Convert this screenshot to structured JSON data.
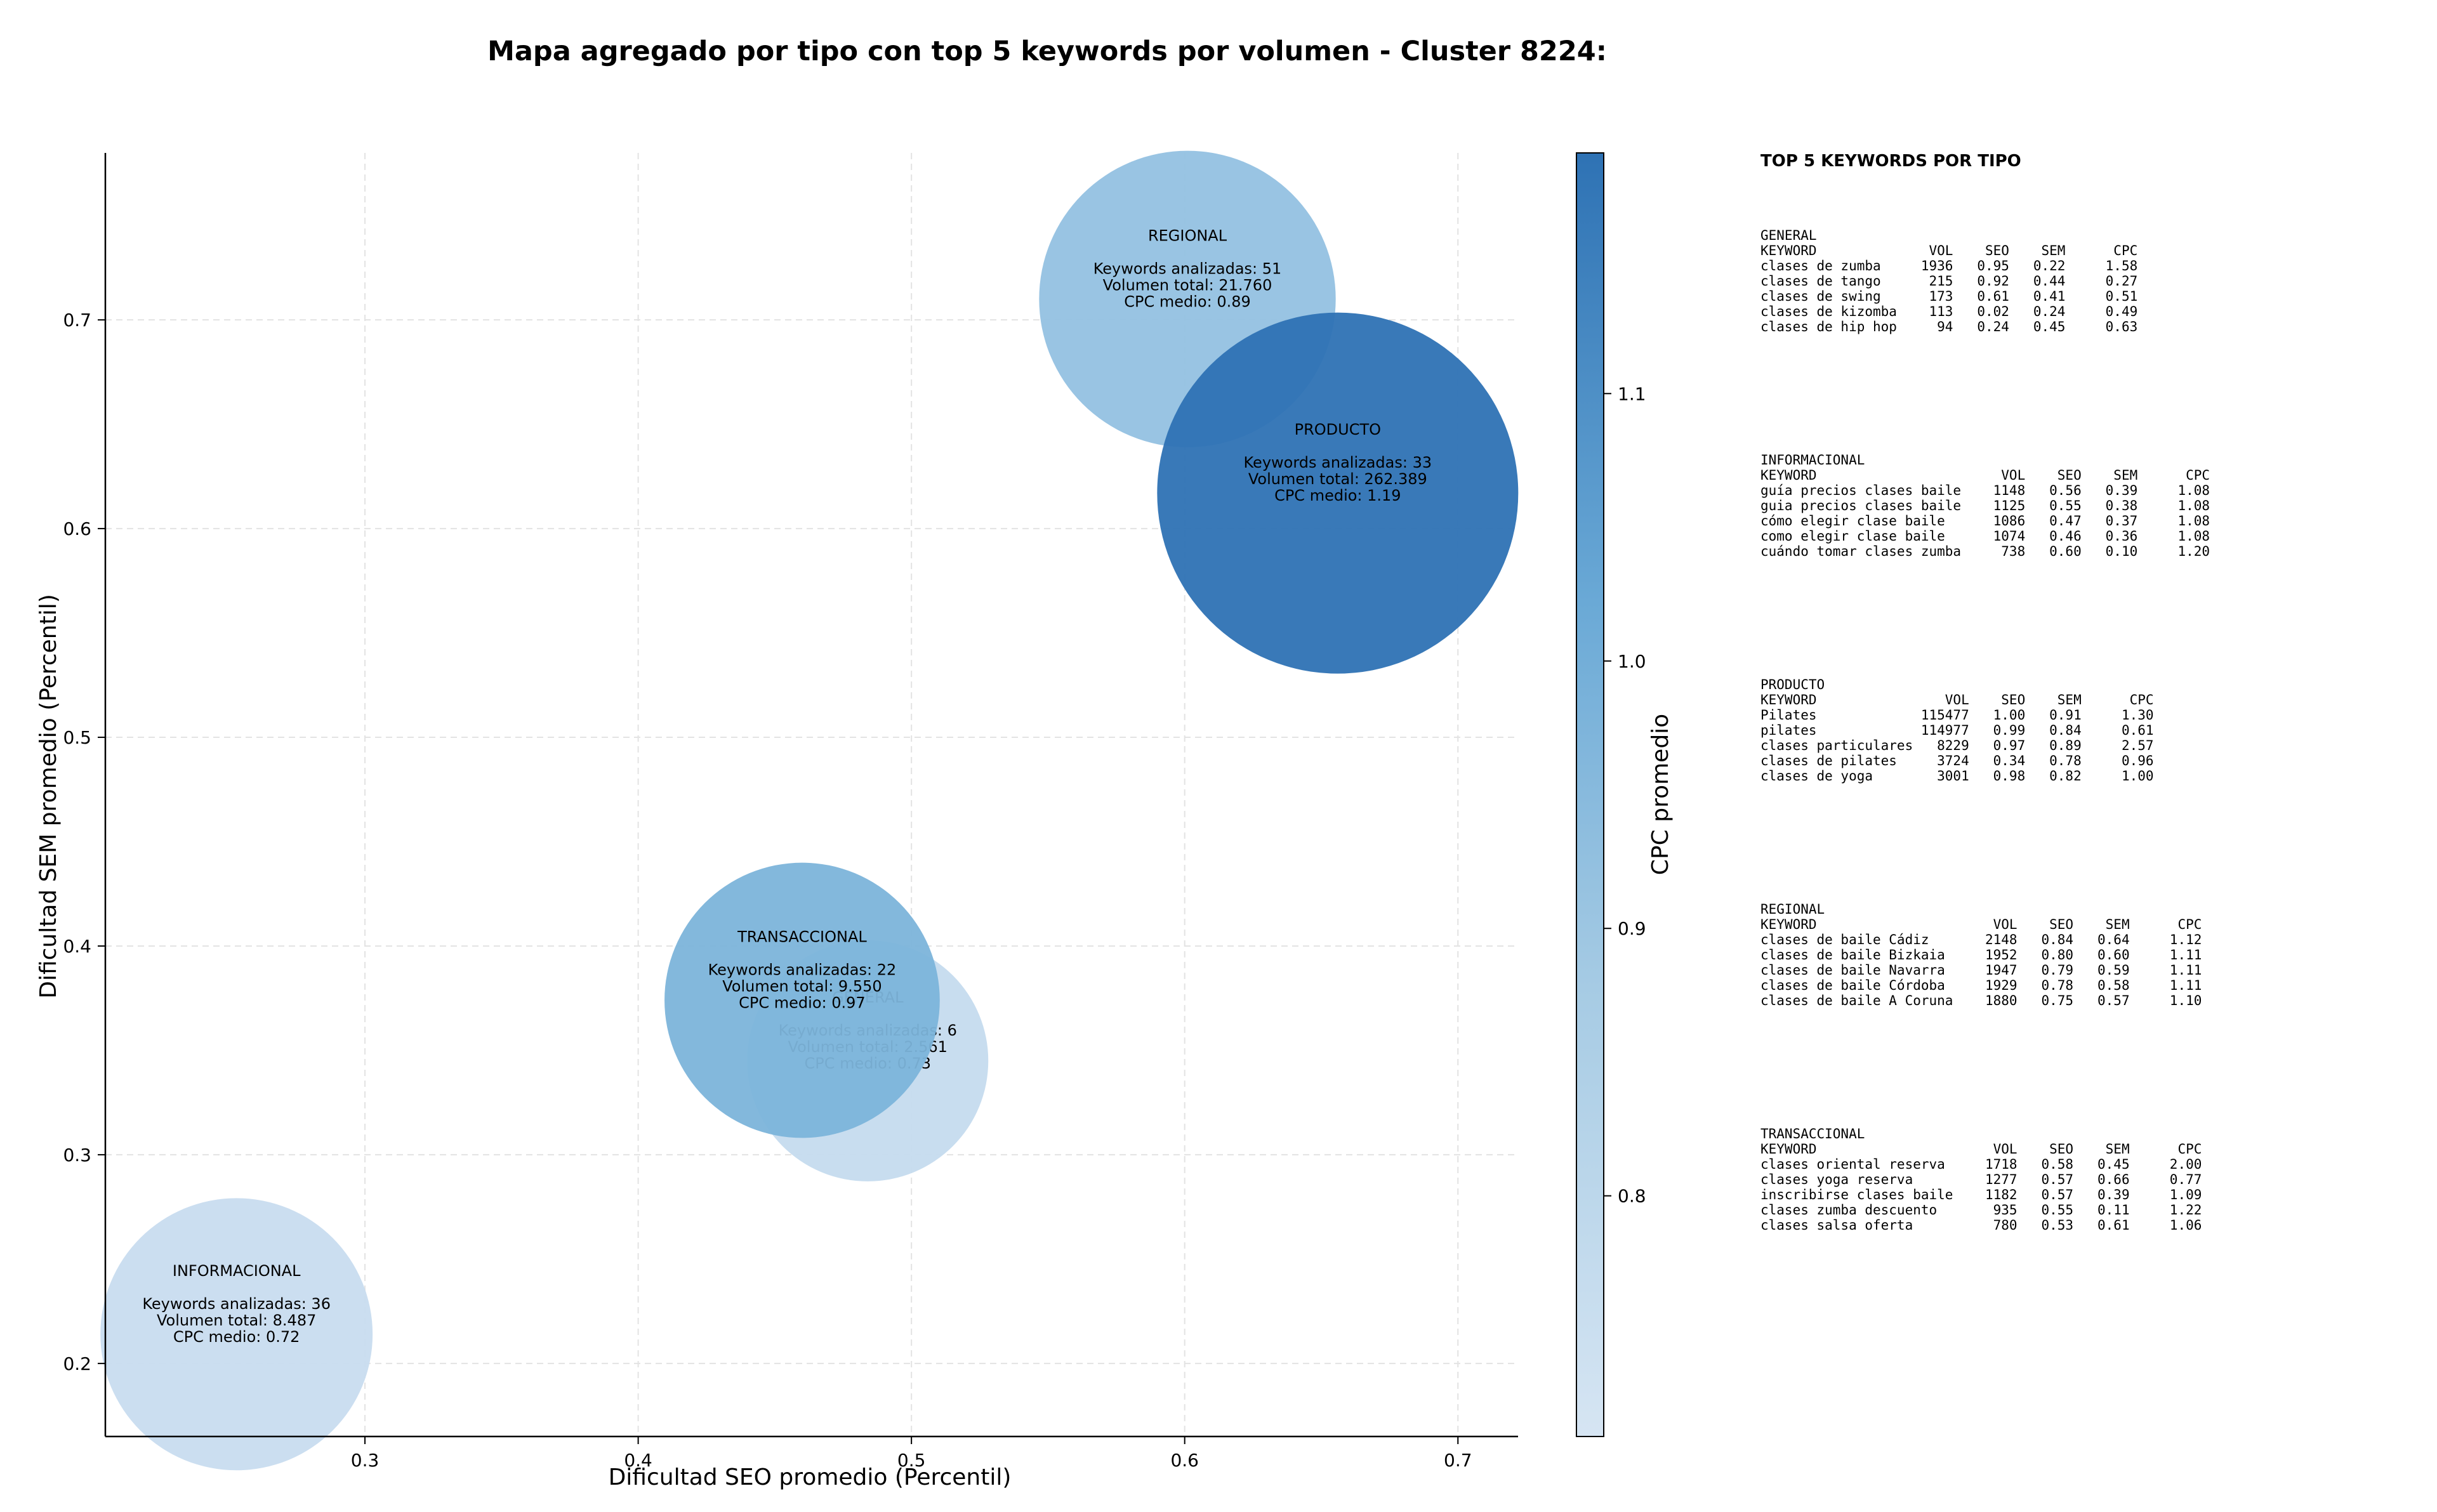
{
  "chart_data": {
    "type": "scatter",
    "title": "Mapa agregado por tipo con top 5 keywords por volumen - Cluster 8224:",
    "xlabel": "Dificultad SEO promedio (Percentil)",
    "ylabel": "Dificultad SEM promedio (Percentil)",
    "colorbar_label": "CPC promedio",
    "xlim": [
      0.205,
      0.722
    ],
    "ylim": [
      0.165,
      0.78
    ],
    "xticks": [
      0.3,
      0.4,
      0.5,
      0.6,
      0.7
    ],
    "yticks": [
      0.2,
      0.3,
      0.4,
      0.5,
      0.6,
      0.7
    ],
    "colorbar_range": [
      0.71,
      1.19
    ],
    "colorbar_ticks": [
      0.8,
      0.9,
      1.0,
      1.1
    ],
    "grid": true,
    "colors": {
      "low": "#cbdef0",
      "mid": "#7bb3da",
      "high": "#2e72b4"
    },
    "points": [
      {
        "name": "GENERAL",
        "x": 0.484,
        "y": 0.345,
        "keywords_label": "Keywords analizadas: 6",
        "volume_label": "Volumen total: 2.561",
        "cpc_label": "CPC medio: 0.73",
        "volume": 2561,
        "cpc": 0.73
      },
      {
        "name": "TRANSACCIONAL",
        "x": 0.46,
        "y": 0.374,
        "keywords_label": "Keywords analizadas: 22",
        "volume_label": "Volumen total: 9.550",
        "cpc_label": "CPC medio: 0.97",
        "volume": 9550,
        "cpc": 0.97
      },
      {
        "name": "INFORMACIONAL",
        "x": 0.253,
        "y": 0.214,
        "keywords_label": "Keywords analizadas: 36",
        "volume_label": "Volumen total: 8.487",
        "cpc_label": "CPC medio: 0.72",
        "volume": 8487,
        "cpc": 0.72
      },
      {
        "name": "REGIONAL",
        "x": 0.601,
        "y": 0.71,
        "keywords_label": "Keywords analizadas: 51",
        "volume_label": "Volumen total: 21.760",
        "cpc_label": "CPC medio: 0.89",
        "volume": 21760,
        "cpc": 0.89
      },
      {
        "name": "PRODUCTO",
        "x": 0.656,
        "y": 0.617,
        "keywords_label": "Keywords analizadas: 33",
        "volume_label": "Volumen total: 262.389",
        "cpc_label": "CPC medio: 1.19",
        "volume": 262389,
        "cpc": 1.19
      }
    ],
    "side_panel": {
      "heading": "TOP 5 KEYWORDS POR TIPO",
      "groups": [
        {
          "name": "GENERAL",
          "lines": [
            "KEYWORD              VOL    SEO    SEM      CPC",
            "clases de zumba     1936   0.95   0.22     1.58",
            "clases de tango      215   0.92   0.44     0.27",
            "clases de swing      173   0.61   0.41     0.51",
            "clases de kizomba    113   0.02   0.24     0.49",
            "clases de hip hop     94   0.24   0.45     0.63"
          ]
        },
        {
          "name": "INFORMACIONAL",
          "lines": [
            "KEYWORD                       VOL    SEO    SEM      CPC",
            "guía precios clases baile    1148   0.56   0.39     1.08",
            "guia precios clases baile    1125   0.55   0.38     1.08",
            "cómo elegir clase baile      1086   0.47   0.37     1.08",
            "como elegir clase baile      1074   0.46   0.36     1.08",
            "cuándo tomar clases zumba     738   0.60   0.10     1.20"
          ]
        },
        {
          "name": "PRODUCTO",
          "lines": [
            "KEYWORD                VOL    SEO    SEM      CPC",
            "Pilates             115477   1.00   0.91     1.30",
            "pilates             114977   0.99   0.84     0.61",
            "clases particulares   8229   0.97   0.89     2.57",
            "clases de pilates     3724   0.34   0.78     0.96",
            "clases de yoga        3001   0.98   0.82     1.00"
          ]
        },
        {
          "name": "REGIONAL",
          "lines": [
            "KEYWORD                      VOL    SEO    SEM      CPC",
            "clases de baile Cádiz       2148   0.84   0.64     1.12",
            "clases de baile Bizkaia     1952   0.80   0.60     1.11",
            "clases de baile Navarra     1947   0.79   0.59     1.11",
            "clases de baile Córdoba     1929   0.78   0.58     1.11",
            "clases de baile A Coruna    1880   0.75   0.57     1.10"
          ]
        },
        {
          "name": "TRANSACCIONAL",
          "lines": [
            "KEYWORD                      VOL    SEO    SEM      CPC",
            "clases oriental reserva     1718   0.58   0.45     2.00",
            "clases yoga reserva         1277   0.57   0.66     0.77",
            "inscribirse clases baile    1182   0.57   0.39     1.09",
            "clases zumba descuento       935   0.55   0.11     1.22",
            "clases salsa oferta          780   0.53   0.61     1.06"
          ]
        }
      ]
    }
  }
}
